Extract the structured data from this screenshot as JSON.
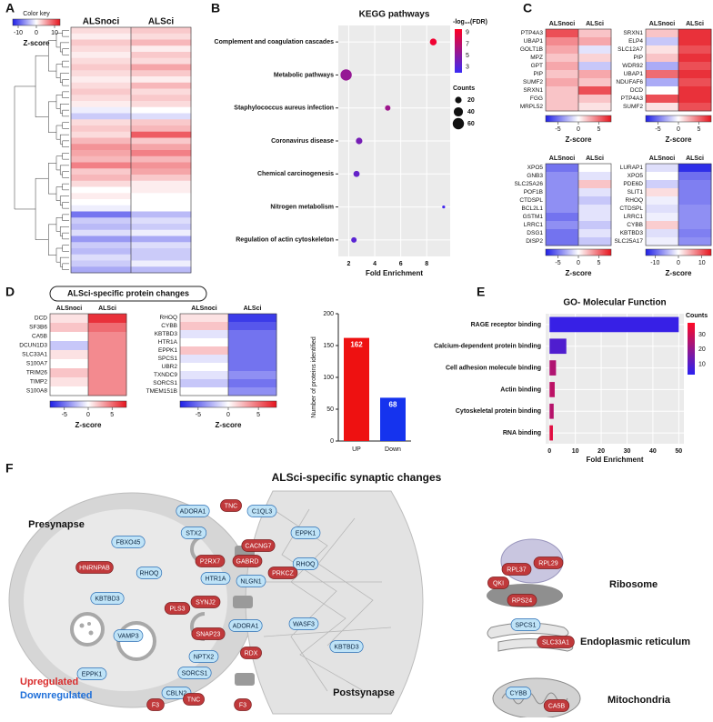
{
  "panel_labels": [
    "A",
    "B",
    "C",
    "D",
    "E",
    "F"
  ],
  "d_title": "ALSci-specific protein changes",
  "chart_data": [
    {
      "type": "heatmap",
      "columns": [
        "ALSnoci",
        "ALSci"
      ],
      "ctitle": "Color key",
      "clabel": "Z-score",
      "clim": [
        -13,
        13
      ],
      "cticks": [
        -10,
        0,
        10
      ],
      "colors": [
        "#1f1fe6",
        "#ffffff",
        "#e6141e"
      ],
      "values": [
        [
          2,
          3
        ],
        [
          1,
          2
        ],
        [
          3,
          4
        ],
        [
          2,
          1
        ],
        [
          1,
          3
        ],
        [
          2,
          2
        ],
        [
          3,
          5
        ],
        [
          2,
          3
        ],
        [
          1,
          1
        ],
        [
          2,
          4
        ],
        [
          3,
          2
        ],
        [
          2,
          3
        ],
        [
          1,
          2
        ],
        [
          -1,
          0
        ],
        [
          -3,
          -2
        ],
        [
          2,
          3
        ],
        [
          3,
          4
        ],
        [
          2,
          9
        ],
        [
          4,
          3
        ],
        [
          6,
          5
        ],
        [
          5,
          7
        ],
        [
          4,
          4
        ],
        [
          7,
          6
        ],
        [
          3,
          5
        ],
        [
          4,
          3
        ],
        [
          2,
          1
        ],
        [
          0,
          1
        ],
        [
          1,
          0
        ],
        [
          0,
          0
        ],
        [
          -1,
          0
        ],
        [
          -8,
          -4
        ],
        [
          -3,
          -2
        ],
        [
          -4,
          -3
        ],
        [
          -2,
          -1
        ],
        [
          -6,
          -5
        ],
        [
          -3,
          -2
        ],
        [
          -4,
          -3
        ],
        [
          -2,
          -3
        ],
        [
          -3,
          -1
        ],
        [
          -5,
          -4
        ]
      ]
    },
    {
      "type": "scatter",
      "title": "KEGG pathways",
      "categories": [
        "Complement and coagulation cascades",
        "Metabolic pathways",
        "Staphylococcus aureus infection",
        "Coronavirus disease",
        "Chemical carcinogenesis",
        "Nitrogen metabolism",
        "Regulation of actin cytoskeleton"
      ],
      "values": [
        8.5,
        1.8,
        5.0,
        2.8,
        2.6,
        9.3,
        2.4
      ],
      "neg_log10_fdr": [
        9.0,
        5.5,
        5.8,
        4.3,
        3.6,
        2.3,
        3.2
      ],
      "counts": [
        22,
        60,
        14,
        20,
        18,
        4,
        14
      ],
      "xlabel": "Fold Enrichment",
      "xlim": [
        1.2,
        9.8
      ],
      "xticks": [
        2,
        4,
        6,
        8
      ],
      "grid": true,
      "color_legend": {
        "title": "-log₁₀(FDR)",
        "lim": [
          2,
          9.6
        ],
        "ticks": [
          9,
          7,
          5,
          3
        ],
        "colors": [
          "#3b2bf5",
          "#ff0022"
        ]
      },
      "size_legend": {
        "title": "Counts",
        "values": [
          20,
          40,
          60
        ]
      }
    },
    {
      "type": "heatmap",
      "columns": [
        "ALSnoci",
        "ALSci"
      ],
      "clabel": "Z-score",
      "clim": [
        -8,
        8
      ],
      "cticks": [
        -5,
        0,
        5
      ],
      "colors": [
        "#1f1fe6",
        "#ffffff",
        "#e6141e"
      ],
      "rows": [
        "PTP4A3",
        "UBAP1",
        "GOLT1B",
        "MPZ",
        "GPT",
        "PIP",
        "SUMF2",
        "SRXN1",
        "FGG",
        "MRPL52"
      ],
      "values": [
        [
          6,
          2
        ],
        [
          4,
          3
        ],
        [
          3,
          -1
        ],
        [
          2,
          1.5
        ],
        [
          3,
          -2
        ],
        [
          2,
          3
        ],
        [
          3,
          2
        ],
        [
          2,
          6
        ],
        [
          2,
          2
        ],
        [
          2,
          1
        ]
      ]
    },
    {
      "type": "heatmap",
      "columns": [
        "ALSnoci",
        "ALSci"
      ],
      "clabel": "Z-score",
      "clim": [
        -8,
        8
      ],
      "cticks": [
        -5,
        0,
        5
      ],
      "colors": [
        "#1f1fe6",
        "#ffffff",
        "#e6141e"
      ],
      "rows": [
        "SRXN1",
        "ELP4",
        "SLC12A7",
        "PIP",
        "WDR92",
        "UBAP1",
        "NDUFAF6",
        "DCD",
        "PTP4A3",
        "SUMF2"
      ],
      "values": [
        [
          2,
          7
        ],
        [
          -2,
          7
        ],
        [
          1,
          6
        ],
        [
          2,
          7
        ],
        [
          -3,
          6
        ],
        [
          5,
          7
        ],
        [
          -3,
          6
        ],
        [
          0,
          7
        ],
        [
          6,
          7
        ],
        [
          1,
          6
        ]
      ]
    },
    {
      "type": "heatmap",
      "columns": [
        "ALSnoci",
        "ALSci"
      ],
      "clabel": "Z-score",
      "clim": [
        -8,
        8
      ],
      "cticks": [
        -5,
        0,
        5
      ],
      "colors": [
        "#1f1fe6",
        "#ffffff",
        "#e6141e"
      ],
      "rows": [
        "XPO5",
        "GNB3",
        "SLC25A26",
        "POF1B",
        "CTDSPL",
        "BCL2L1",
        "GSTM1",
        "LRRC1",
        "DSG1",
        "DISP2"
      ],
      "values": [
        [
          -5,
          0
        ],
        [
          -4,
          -1
        ],
        [
          -4,
          2
        ],
        [
          -4,
          -1
        ],
        [
          -4,
          -2
        ],
        [
          -4,
          -1
        ],
        [
          -5,
          -1
        ],
        [
          -4,
          -2
        ],
        [
          -5,
          -1
        ],
        [
          -5,
          -2
        ]
      ]
    },
    {
      "type": "heatmap",
      "columns": [
        "ALSnoci",
        "ALSci"
      ],
      "clabel": "Z-score",
      "clim": [
        -14,
        14
      ],
      "cticks": [
        -10,
        0,
        10
      ],
      "colors": [
        "#1f1fe6",
        "#ffffff",
        "#e6141e"
      ],
      "rows": [
        "LURAP1",
        "XPO5",
        "PDE6D",
        "SLIT1",
        "RHOQ",
        "CTDSPL",
        "LRRC1",
        "CYBB",
        "KBTBD3",
        "SLC25A17"
      ],
      "values": [
        [
          -2,
          -13
        ],
        [
          0,
          -9
        ],
        [
          -3,
          -8
        ],
        [
          2,
          -8
        ],
        [
          -1,
          -8
        ],
        [
          -2,
          -7
        ],
        [
          -1,
          -7
        ],
        [
          3,
          -7
        ],
        [
          -2,
          -8
        ],
        [
          -1,
          -7
        ]
      ]
    },
    {
      "type": "heatmap",
      "columns": [
        "ALSnoci",
        "ALSci"
      ],
      "clabel": "Z-score",
      "clim": [
        -8,
        8
      ],
      "cticks": [
        -5,
        0,
        5
      ],
      "colors": [
        "#1f1fe6",
        "#ffffff",
        "#e6141e"
      ],
      "rows": [
        "DCD",
        "SF3B6",
        "CA5B",
        "DCUN1D3",
        "SLC33A1",
        "S100A7",
        "TRIM26",
        "TIMP2",
        "S100A8"
      ],
      "values": [
        [
          1,
          7
        ],
        [
          2,
          5
        ],
        [
          0,
          4
        ],
        [
          -2,
          4
        ],
        [
          1,
          4
        ],
        [
          0,
          4
        ],
        [
          2,
          4
        ],
        [
          1,
          4
        ],
        [
          0,
          4
        ]
      ]
    },
    {
      "type": "heatmap",
      "columns": [
        "ALSnoci",
        "ALSci"
      ],
      "clabel": "Z-score",
      "clim": [
        -8,
        8
      ],
      "cticks": [
        -5,
        0,
        5
      ],
      "colors": [
        "#1f1fe6",
        "#ffffff",
        "#e6141e"
      ],
      "rows": [
        "RHOQ",
        "CYBB",
        "KBTBD3",
        "HTR1A",
        "EPPK1",
        "SPCS1",
        "UBR2",
        "TXNDC9",
        "SORCS1",
        "TMEM151B"
      ],
      "values": [
        [
          1,
          -7
        ],
        [
          2,
          -6
        ],
        [
          -1,
          -5
        ],
        [
          0,
          -5
        ],
        [
          2,
          -5
        ],
        [
          -1,
          -5
        ],
        [
          0,
          -5
        ],
        [
          -1,
          -4
        ],
        [
          -2,
          -5
        ],
        [
          0,
          -4
        ]
      ]
    },
    {
      "type": "bar",
      "categories": [
        "UP",
        "Down"
      ],
      "values": [
        162,
        68
      ],
      "colors": [
        "#ee1111",
        "#1533ee"
      ],
      "ylabel": "Number of proteins identified",
      "ylim": [
        0,
        200
      ],
      "yticks": [
        0,
        50,
        100,
        150,
        200
      ]
    },
    {
      "type": "hbar",
      "title": "GO- Molecular Function",
      "categories": [
        "RAGE receptor binding",
        "Calcium-dependent protein binding",
        "Cell adhesion molecule binding",
        "Actin binding",
        "Cytoskeletal protein binding",
        "RNA binding"
      ],
      "values": [
        50,
        6.5,
        2.5,
        2.0,
        1.6,
        1.3
      ],
      "counts": [
        5,
        9,
        25,
        27,
        26,
        33
      ],
      "xlabel": "Fold Enrichment",
      "xlim": [
        -1.5,
        52
      ],
      "xticks": [
        0,
        10,
        20,
        30,
        40,
        50
      ],
      "grid": true,
      "color_legend": {
        "title": "Counts",
        "lim": [
          3,
          38
        ],
        "ticks": [
          30,
          20,
          10
        ],
        "colors": [
          "#2b21f2",
          "#ff0a24"
        ]
      }
    }
  ],
  "diagram": {
    "title": "ALSci-specific synaptic changes",
    "compartments": [
      "Presynapse",
      "Postsynapse",
      "Ribosome",
      "Endoplasmic reticulum",
      "Mitochondria"
    ],
    "legend": [
      "Upregulated",
      "Downregulated"
    ],
    "proteins": [
      {
        "label": "ADORA1",
        "regulation": "down"
      },
      {
        "label": "TNC",
        "regulation": "up"
      },
      {
        "label": "C1QL3",
        "regulation": "down"
      },
      {
        "label": "CACNG7",
        "regulation": "up"
      },
      {
        "label": "STX2",
        "regulation": "down"
      },
      {
        "label": "FBXO45",
        "regulation": "down"
      },
      {
        "label": "EPPK1",
        "regulation": "down"
      },
      {
        "label": "P2RX7",
        "regulation": "up"
      },
      {
        "label": "GABRD",
        "regulation": "up"
      },
      {
        "label": "HNRNPAB",
        "regulation": "up"
      },
      {
        "label": "RHOQ",
        "regulation": "down"
      },
      {
        "label": "RHOQ",
        "regulation": "down"
      },
      {
        "label": "HTR1A",
        "regulation": "down"
      },
      {
        "label": "NLGN1",
        "regulation": "down"
      },
      {
        "label": "PRKCZ",
        "regulation": "up"
      },
      {
        "label": "KBTBD3",
        "regulation": "down"
      },
      {
        "label": "PLS3",
        "regulation": "up"
      },
      {
        "label": "SYNJ2",
        "regulation": "up"
      },
      {
        "label": "SNAP23",
        "regulation": "up"
      },
      {
        "label": "ADORA1",
        "regulation": "down"
      },
      {
        "label": "VAMP3",
        "regulation": "down"
      },
      {
        "label": "WASF3",
        "regulation": "down"
      },
      {
        "label": "NPTX2",
        "regulation": "down"
      },
      {
        "label": "RDX",
        "regulation": "up"
      },
      {
        "label": "KBTBD3",
        "regulation": "down"
      },
      {
        "label": "SORCS1",
        "regulation": "down"
      },
      {
        "label": "EPPK1",
        "regulation": "down"
      },
      {
        "label": "CBLN2",
        "regulation": "down"
      },
      {
        "label": "F3",
        "regulation": "up"
      },
      {
        "label": "TNC",
        "regulation": "up"
      },
      {
        "label": "F3",
        "regulation": "up"
      },
      {
        "label": "RPL29",
        "regulation": "up"
      },
      {
        "label": "RPL37",
        "regulation": "up"
      },
      {
        "label": "QKI",
        "regulation": "up"
      },
      {
        "label": "RPS24",
        "regulation": "up"
      },
      {
        "label": "SPCS1",
        "regulation": "down"
      },
      {
        "label": "SLC33A1",
        "regulation": "up"
      },
      {
        "label": "CYBB",
        "regulation": "down"
      },
      {
        "label": "CA5B",
        "regulation": "up"
      }
    ]
  }
}
